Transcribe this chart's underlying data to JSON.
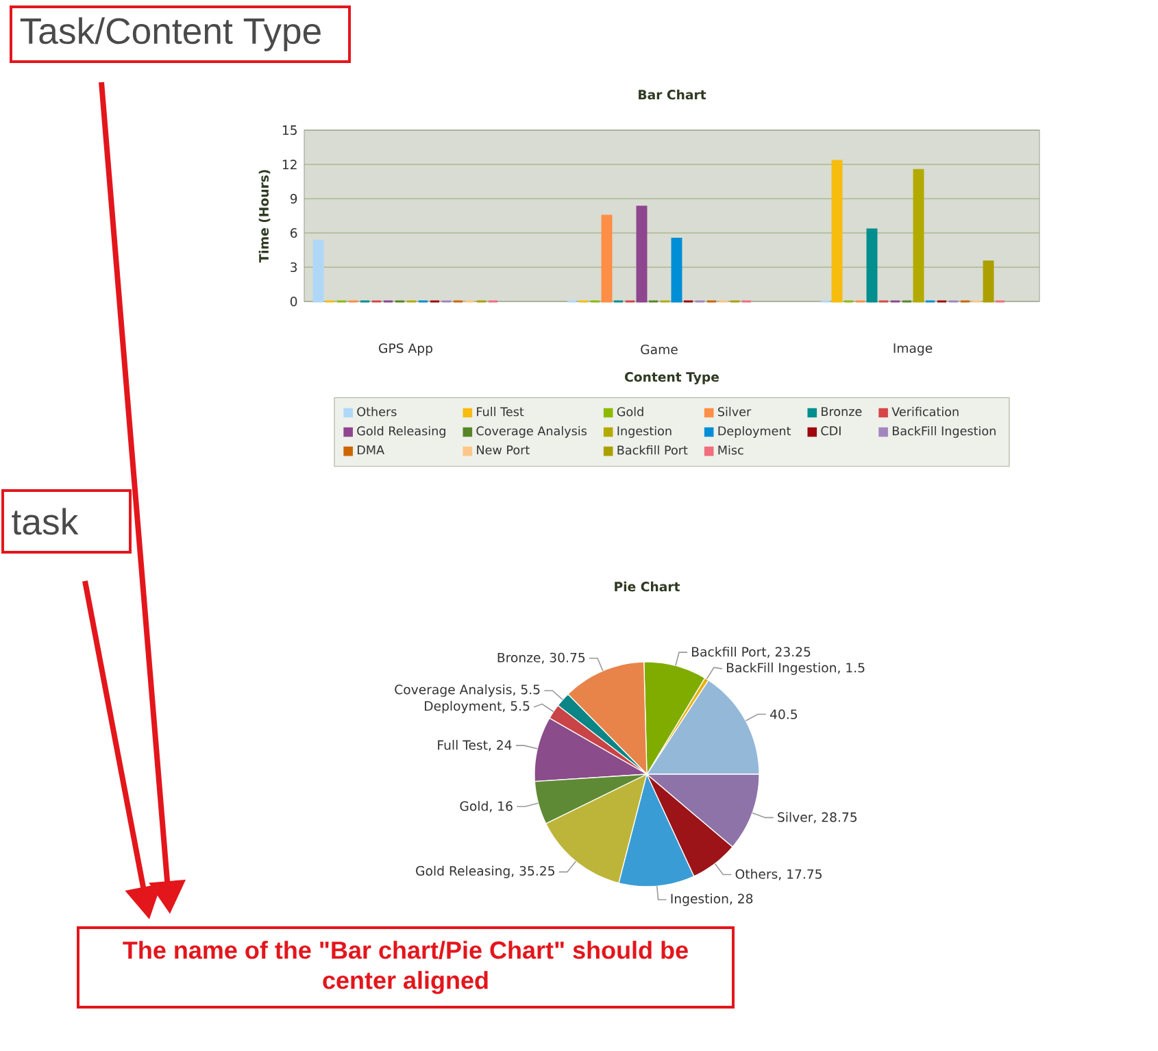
{
  "chart_data": [
    {
      "type": "bar",
      "title": "Bar Chart",
      "xlabel": "Content Type",
      "ylabel": "Time (Hours)",
      "categories": [
        "GPS App",
        "Game",
        "Image"
      ],
      "series": [
        {
          "name": "Others",
          "color": "#afd8f8",
          "values": [
            5.3,
            0,
            0
          ]
        },
        {
          "name": "Full Test",
          "color": "#f6bd0f",
          "values": [
            0,
            0,
            12.3
          ]
        },
        {
          "name": "Gold",
          "color": "#8bba00",
          "values": [
            0,
            0,
            0
          ]
        },
        {
          "name": "Silver",
          "color": "#ff8e46",
          "values": [
            0,
            7.5,
            0
          ]
        },
        {
          "name": "Bronze",
          "color": "#008e8e",
          "values": [
            0,
            0,
            6.3
          ]
        },
        {
          "name": "Verification",
          "color": "#d64646",
          "values": [
            0,
            0,
            0
          ]
        },
        {
          "name": "Gold Releasing",
          "color": "#8e468e",
          "values": [
            0,
            8.3,
            0
          ]
        },
        {
          "name": "Coverage Analysis",
          "color": "#588526",
          "values": [
            0,
            0,
            0
          ]
        },
        {
          "name": "Ingestion",
          "color": "#b3aa00",
          "values": [
            0,
            0,
            11.5
          ]
        },
        {
          "name": "Deployment",
          "color": "#008ed6",
          "values": [
            0,
            5.5,
            0
          ]
        },
        {
          "name": "CDI",
          "color": "#9d080d",
          "values": [
            0,
            0,
            0
          ]
        },
        {
          "name": "BackFill Ingestion",
          "color": "#a186be",
          "values": [
            0,
            0,
            0
          ]
        },
        {
          "name": "DMA",
          "color": "#cc6600",
          "values": [
            0,
            0,
            0
          ]
        },
        {
          "name": "New Port",
          "color": "#fdc689",
          "values": [
            0,
            0,
            0
          ]
        },
        {
          "name": "Backfill Port",
          "color": "#aba000",
          "values": [
            0,
            0,
            3.5
          ]
        },
        {
          "name": "Misc",
          "color": "#f26d7d",
          "values": [
            0,
            0,
            0
          ]
        }
      ],
      "ylim": [
        0,
        15
      ],
      "yticks": [
        0,
        3,
        6,
        9,
        12,
        15
      ],
      "grid": "y",
      "legend": "bottom",
      "annotations": [
        "Task/Content Type"
      ]
    },
    {
      "type": "pie",
      "title": "Pie Chart",
      "categories": [
        null,
        "BackFill Ingestion",
        "Backfill Port",
        "Bronze",
        "Coverage Analysis",
        "Deployment",
        "Full Test",
        "Gold",
        "Gold Releasing",
        "Ingestion",
        "Others",
        "Silver"
      ],
      "values": [
        40.5,
        1.5,
        23.25,
        30.75,
        5.5,
        5.5,
        24,
        16,
        35.25,
        28,
        17.75,
        28.75
      ],
      "value_labels": [
        "40.5",
        ", 1.5",
        ", 23.25",
        ", 30.75",
        ", 5.5",
        ", 5.5",
        ", 24",
        ", 16",
        ", 35.25",
        ", 28",
        ", 17.75",
        ", 28.75"
      ],
      "colors": [
        "#94b8d8",
        "#e8b00c",
        "#80ac00",
        "#e8844a",
        "#0b8585",
        "#c84446",
        "#8a4c8a",
        "#5f8a35",
        "#bdb53a",
        "#3a9cd4",
        "#9c1418",
        "#8e73a8"
      ],
      "annotations": [
        "task",
        "The name of the \"Bar chart/Pie Chart\" should be center aligned"
      ]
    }
  ]
}
